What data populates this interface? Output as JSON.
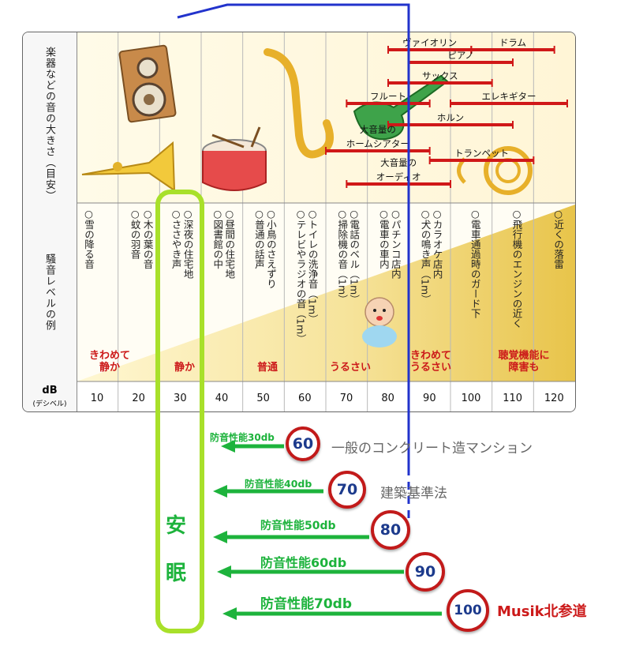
{
  "row1_label": "楽器などの音の大きさ（目安）",
  "row2_label": "騒音レベルの例",
  "db_label": "dB",
  "db_sub": "(デシベル)",
  "db_values": [
    "10",
    "20",
    "30",
    "40",
    "50",
    "60",
    "70",
    "80",
    "90",
    "100",
    "110",
    "120"
  ],
  "examples": [
    [
      "○雪の降る音"
    ],
    [
      "○蚊の羽音"
    ],
    [
      "○木の葉の音"
    ],
    [
      "○深夜の住宅地",
      "○ささやき声"
    ],
    [
      "○昼間の住宅地",
      "○図書館の中"
    ],
    [
      "○小鳥のさえずり",
      "○普通の話声"
    ],
    [
      "○トイレの洗浄音（1m）",
      "○テレビやラジオの音（1m）"
    ],
    [
      "○電話のベル（1m）",
      "○掃除機の音（1m）"
    ],
    [
      "○パチンコ店内",
      "○電車の車内"
    ],
    [
      "○カラオケ店内",
      "○犬の鳴き声（1m）"
    ],
    [
      "○電車通過時のガード下"
    ],
    [
      "○飛行機のエンジンの近く"
    ],
    [
      "○近くの落雷"
    ]
  ],
  "levels": [
    {
      "text": "きわめて\n静か"
    },
    {
      "text": "静か"
    },
    {
      "text": "普通"
    },
    {
      "text": "うるさい"
    },
    {
      "text": "きわめて\nうるさい"
    },
    {
      "text": "聴覚機能に\n障害も"
    }
  ],
  "instruments": [
    {
      "label": "ヴァイオリン",
      "from": 80,
      "to": 100
    },
    {
      "label": "ドラム",
      "from": 100,
      "to": 120
    },
    {
      "label": "ピアノ",
      "from": 85,
      "to": 110
    },
    {
      "label": "サックス",
      "from": 80,
      "to": 105
    },
    {
      "label": "フルート",
      "from": 70,
      "to": 90
    },
    {
      "label": "エレキギター",
      "from": 95,
      "to": 125
    },
    {
      "label": "ホルン",
      "from": 80,
      "to": 110
    },
    {
      "label": "大音量の\nホームシアター",
      "from": 65,
      "to": 90
    },
    {
      "label": "トランペット",
      "from": 90,
      "to": 115
    },
    {
      "label": "大音量の\nオーディオ",
      "from": 70,
      "to": 95
    }
  ],
  "sleep_label_1": "安",
  "sleep_label_2": "眠",
  "performance": [
    {
      "label": "防音性能30db",
      "sign": "60",
      "note": "一般のコンクリート造マンション"
    },
    {
      "label": "防音性能40db",
      "sign": "70",
      "note": "建築基準法"
    },
    {
      "label": "防音性能50db",
      "sign": "80",
      "note": ""
    },
    {
      "label": "防音性能60db",
      "sign": "90",
      "note": ""
    },
    {
      "label": "防音性能70db",
      "sign": "100",
      "note": "Musik北参道"
    }
  ],
  "colors": {
    "red_bar": "#d01818",
    "green": "#1db33c",
    "lime": "#a8e02a",
    "blue_line": "#2233cc",
    "brand": "#cc1a1a"
  }
}
